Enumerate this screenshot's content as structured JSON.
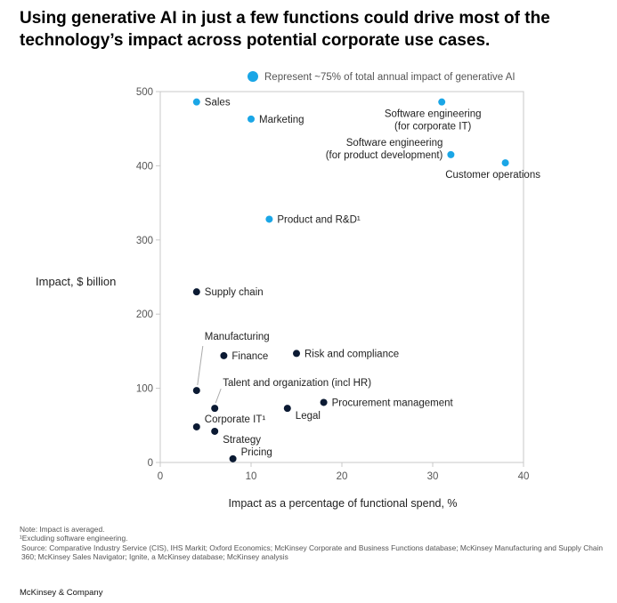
{
  "title": "Using generative AI in just a few functions could drive most of the technology’s impact across potential corporate use cases.",
  "notes": [
    "Note: Impact is averaged.",
    "¹Excluding software engineering.",
    "Source: Comparative Industry Service (CIS), IHS Markit; Oxford Economics; McKinsey Corporate and Business Functions database; McKinsey Manufacturing and Supply Chain 360; McKinsey Sales Navigator; Ignite, a McKinsey database; McKinsey analysis"
  ],
  "footer": "McKinsey & Company",
  "colors": {
    "highlight": "#1aa6e6",
    "other": "#0b1a33",
    "axis": "#c8c8c8"
  },
  "chart_data": {
    "type": "scatter",
    "xlabel": "Impact as a percentage of functional spend, %",
    "ylabel": "Impact, $ billion",
    "xlim": [
      0,
      40
    ],
    "ylim": [
      0,
      500
    ],
    "xticks": [
      0,
      10,
      20,
      30,
      40
    ],
    "yticks": [
      0,
      100,
      200,
      300,
      400,
      500
    ],
    "legend": {
      "label": "Represent ~75% of total annual impact of generative AI",
      "placement": "top"
    },
    "points": [
      {
        "label": [
          "Sales"
        ],
        "x": 4,
        "y": 486,
        "highlight": true
      },
      {
        "label": [
          "Marketing"
        ],
        "x": 10,
        "y": 463,
        "highlight": true
      },
      {
        "label": [
          "Software engineering",
          "(for corporate IT)"
        ],
        "x": 31,
        "y": 486,
        "highlight": true
      },
      {
        "label": [
          "Software engineering",
          "(for product development)"
        ],
        "x": 32,
        "y": 415,
        "highlight": true
      },
      {
        "label": [
          "Customer operations"
        ],
        "x": 38,
        "y": 404,
        "highlight": true
      },
      {
        "label": [
          "Product and R&D¹"
        ],
        "x": 12,
        "y": 328,
        "highlight": true
      },
      {
        "label": [
          "Supply chain"
        ],
        "x": 4,
        "y": 230,
        "highlight": false
      },
      {
        "label": [
          "Manufacturing"
        ],
        "x": 4,
        "y": 97,
        "highlight": false
      },
      {
        "label": [
          "Finance"
        ],
        "x": 7,
        "y": 144,
        "highlight": false
      },
      {
        "label": [
          "Risk and compliance"
        ],
        "x": 15,
        "y": 147,
        "highlight": false
      },
      {
        "label": [
          "Talent and organization (incl HR)"
        ],
        "x": 6,
        "y": 73,
        "highlight": false
      },
      {
        "label": [
          "Procurement management"
        ],
        "x": 18,
        "y": 81,
        "highlight": false
      },
      {
        "label": [
          "Legal"
        ],
        "x": 14,
        "y": 73,
        "highlight": false
      },
      {
        "label": [
          "Corporate IT¹"
        ],
        "x": 4,
        "y": 48,
        "highlight": false
      },
      {
        "label": [
          "Strategy"
        ],
        "x": 6,
        "y": 42,
        "highlight": false
      },
      {
        "label": [
          "Pricing"
        ],
        "x": 8,
        "y": 5,
        "highlight": false
      }
    ]
  }
}
